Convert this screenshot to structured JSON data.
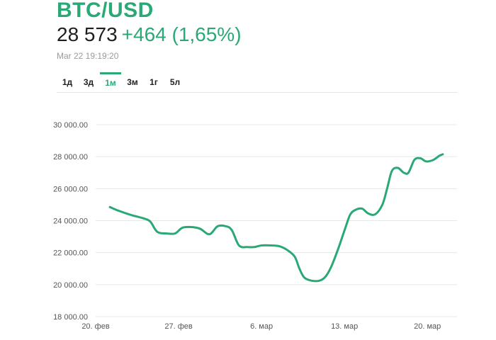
{
  "header": {
    "symbol": "BTC/USD",
    "price": "28 573",
    "change": "+464 (1,65%)",
    "timestamp": "Mar 22 19:19:20"
  },
  "tabs": [
    {
      "label": "1д",
      "active": false
    },
    {
      "label": "3д",
      "active": false
    },
    {
      "label": "1м",
      "active": true
    },
    {
      "label": "3м",
      "active": false
    },
    {
      "label": "1г",
      "active": false
    },
    {
      "label": "5л",
      "active": false
    }
  ],
  "colors": {
    "accent": "#2aa876"
  },
  "chart_data": {
    "type": "line",
    "x_ticks": [
      {
        "label": "20. фев",
        "day": 0
      },
      {
        "label": "27. фев",
        "day": 7
      },
      {
        "label": "6. мар",
        "day": 14
      },
      {
        "label": "13. мар",
        "day": 21
      },
      {
        "label": "20. мар",
        "day": 28
      }
    ],
    "y_ticks": [
      "18 000.00",
      "20 000.00",
      "22 000.00",
      "24 000.00",
      "26 000.00",
      "28 000.00",
      "30 000.00"
    ],
    "ylim": [
      18000,
      30000
    ],
    "xlim": [
      0,
      30.5
    ],
    "grid": true,
    "series": [
      {
        "points": [
          [
            1.2,
            24850
          ],
          [
            2.0,
            24600
          ],
          [
            3.0,
            24350
          ],
          [
            4.0,
            24150
          ],
          [
            4.6,
            23950
          ],
          [
            5.2,
            23300
          ],
          [
            6.0,
            23200
          ],
          [
            6.7,
            23200
          ],
          [
            7.3,
            23550
          ],
          [
            8.0,
            23600
          ],
          [
            8.8,
            23500
          ],
          [
            9.6,
            23150
          ],
          [
            10.3,
            23650
          ],
          [
            11.0,
            23650
          ],
          [
            11.5,
            23400
          ],
          [
            12.1,
            22450
          ],
          [
            12.8,
            22350
          ],
          [
            13.4,
            22350
          ],
          [
            14.0,
            22450
          ],
          [
            14.8,
            22450
          ],
          [
            15.5,
            22400
          ],
          [
            16.2,
            22150
          ],
          [
            16.8,
            21750
          ],
          [
            17.2,
            21000
          ],
          [
            17.6,
            20450
          ],
          [
            18.2,
            20250
          ],
          [
            18.9,
            20250
          ],
          [
            19.4,
            20500
          ],
          [
            19.9,
            21150
          ],
          [
            20.5,
            22300
          ],
          [
            21.1,
            23600
          ],
          [
            21.5,
            24400
          ],
          [
            22.0,
            24700
          ],
          [
            22.5,
            24750
          ],
          [
            23.0,
            24450
          ],
          [
            23.6,
            24400
          ],
          [
            24.2,
            25000
          ],
          [
            24.6,
            26000
          ],
          [
            25.0,
            27100
          ],
          [
            25.5,
            27300
          ],
          [
            26.0,
            27000
          ],
          [
            26.4,
            27000
          ],
          [
            26.9,
            27800
          ],
          [
            27.4,
            27900
          ],
          [
            27.9,
            27700
          ],
          [
            28.5,
            27800
          ],
          [
            29.0,
            28050
          ],
          [
            29.3,
            28150
          ]
        ]
      }
    ]
  }
}
